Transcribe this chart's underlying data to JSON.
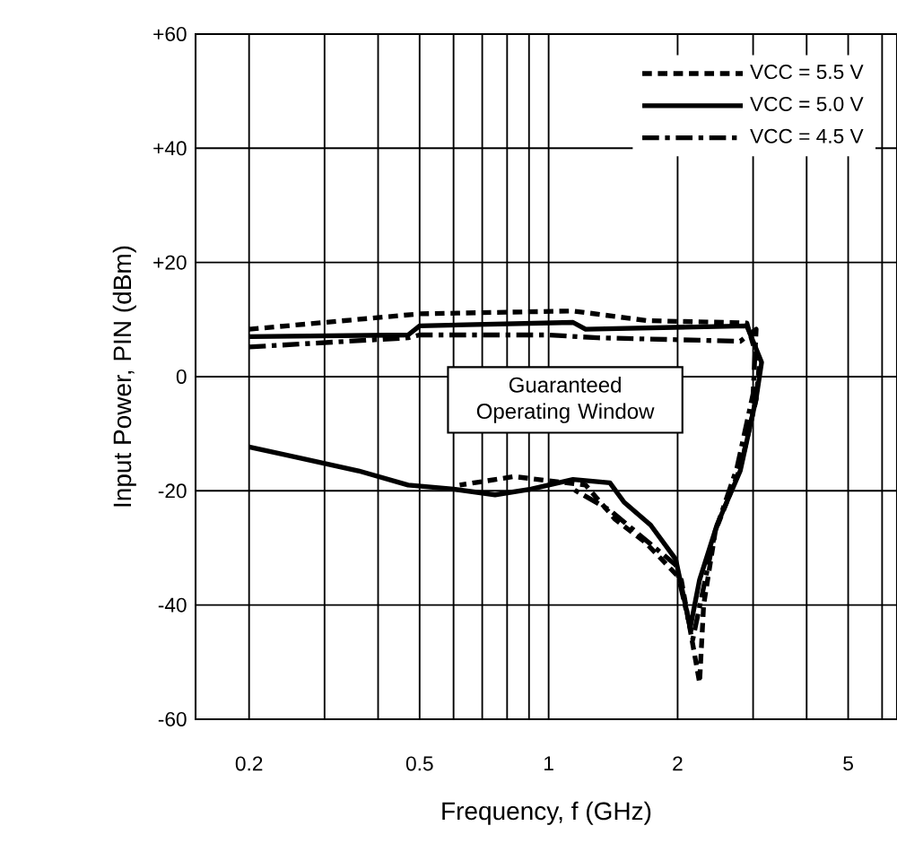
{
  "chart_data": {
    "type": "line",
    "xlabel": "Frequency, f (GHz)",
    "ylabel": "Input Power, PIN (dBm)",
    "log": "x",
    "xlim": [
      0.15,
      6.5
    ],
    "ylim": [
      -60,
      60
    ],
    "xticks": [
      0.2,
      {
        "value": 0.3,
        "label": null
      },
      {
        "value": 0.4,
        "label": null
      },
      0.5,
      {
        "value": 0.6,
        "label": null
      },
      {
        "value": 0.7,
        "label": null
      },
      {
        "value": 0.8,
        "label": null
      },
      {
        "value": 0.9,
        "label": null
      },
      1,
      2,
      {
        "value": 3,
        "label": null
      },
      {
        "value": 4,
        "label": null
      },
      5,
      {
        "value": 6,
        "label": null
      }
    ],
    "yticks": [
      {
        "value": 60,
        "label": "+60"
      },
      {
        "value": 40,
        "label": "+40"
      },
      {
        "value": 20,
        "label": "+20"
      },
      0,
      -20,
      -40,
      -60
    ],
    "grid": true,
    "legend": "top right",
    "annotations": [
      "Guaranteed Operating Window"
    ],
    "series": [
      {
        "name": "VCC = 5.5 V",
        "color": "#000000",
        "line_style": "dashed",
        "x": [
          0.2,
          0.5,
          1.14,
          1.7,
          2.9,
          3.1,
          3.05,
          2.8,
          2.45,
          2.3,
          2.25,
          2.04,
          1.68,
          1.43,
          1.22,
          0.83,
          0.62
        ],
        "values": [
          8.3,
          11,
          11.5,
          9.8,
          9.4,
          2,
          -4,
          -16,
          -27,
          -40,
          -53.6,
          -35.6,
          -29,
          -25,
          -19,
          -17.5,
          -19
        ]
      },
      {
        "name": "VCC = 5.0 V",
        "color": "#000000",
        "line_style": "solid",
        "x": [
          0.2,
          0.47,
          0.5,
          1.14,
          1.22,
          2.9,
          3.14,
          3.05,
          2.8,
          2.47,
          2.25,
          2.14,
          1.98,
          1.73,
          1.5,
          1.39,
          1.14,
          0.91,
          0.75,
          0.6,
          0.47,
          0.36,
          0.2
        ],
        "values": [
          7,
          7.3,
          8.9,
          9.5,
          8.3,
          8.9,
          2.5,
          -3.8,
          -16.5,
          -26,
          -35.6,
          -44,
          -32,
          -26,
          -22,
          -18.6,
          -18,
          -19.7,
          -20.7,
          -19.7,
          -19,
          -16.5,
          -12.3
        ]
      },
      {
        "name": "VCC = 4.5 V",
        "color": "#000000",
        "line_style": "dashdot",
        "x": [
          0.2,
          0.47,
          0.5,
          1.0,
          1.3,
          2.8,
          3.05,
          3.0,
          2.75,
          2.45,
          2.17,
          1.98,
          1.39,
          1.14
        ],
        "values": [
          5.2,
          6.8,
          7.3,
          7.3,
          6.8,
          6.2,
          8.3,
          -3,
          -16,
          -27,
          -46,
          -33,
          -23.4,
          -19.7
        ]
      }
    ]
  }
}
